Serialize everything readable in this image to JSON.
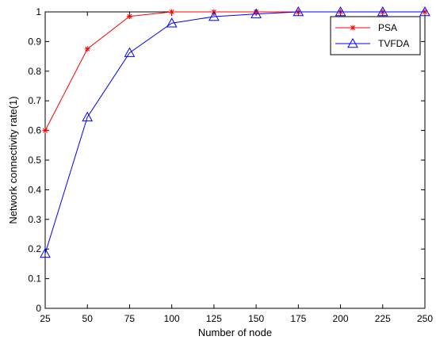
{
  "chart_data": {
    "type": "line",
    "title": "",
    "xlabel": "Number of node",
    "ylabel": "Network connectivity rate(1)",
    "x": [
      25,
      50,
      75,
      100,
      125,
      150,
      175,
      200,
      225,
      250
    ],
    "xlim": [
      25,
      250
    ],
    "ylim": [
      0,
      1
    ],
    "xticks": [
      "25",
      "50",
      "75",
      "100",
      "125",
      "150",
      "175",
      "200",
      "225",
      "250"
    ],
    "yticks": [
      "0",
      "0.1",
      "0.2",
      "0.3",
      "0.4",
      "0.5",
      "0.6",
      "0.7",
      "0.8",
      "0.9",
      "1"
    ],
    "grid": false,
    "legend_position": "top-right",
    "series": [
      {
        "name": "PSA",
        "color": "#ff0000",
        "marker": "asterisk",
        "values": [
          0.6,
          0.875,
          0.985,
          1.0,
          1.0,
          1.0,
          1.0,
          1.0,
          1.0,
          1.0
        ]
      },
      {
        "name": "TVFDA",
        "color": "#0000ff",
        "marker": "triangle",
        "values": [
          0.185,
          0.645,
          0.862,
          0.962,
          0.984,
          0.993,
          1.0,
          1.0,
          1.0,
          1.0
        ]
      }
    ]
  }
}
